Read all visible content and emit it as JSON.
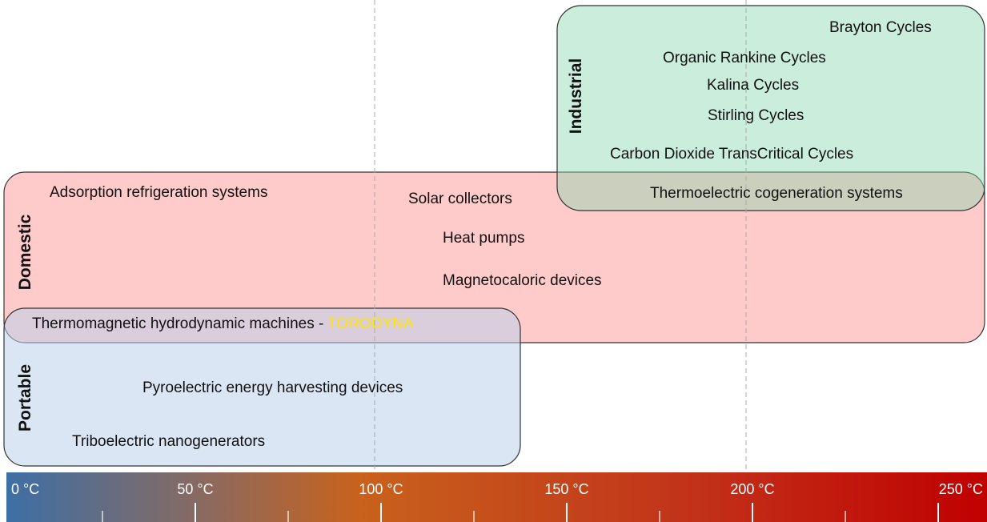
{
  "groups": {
    "industrial": {
      "label": "Industrial",
      "items": [
        "Brayton Cycles",
        "Organic Rankine Cycles",
        "Kalina Cycles",
        "Stirling Cycles",
        "Carbon Dioxide TransCritical Cycles",
        "Thermoelectric cogeneration systems"
      ]
    },
    "domestic": {
      "label": "Domestic",
      "items": [
        "Adsorption refrigeration systems",
        "Solar collectors",
        "Heat pumps",
        "Magnetocaloric devices"
      ]
    },
    "portable": {
      "label": "Portable",
      "items": [
        "Pyroelectric energy harvesting devices",
        "Triboelectric nanogenerators"
      ]
    }
  },
  "shared": {
    "text": "Thermomagnetic hydrodynamic machines - ",
    "highlight": "TORODYNA"
  },
  "scale": {
    "labels": [
      "0 °C",
      "50 °C",
      "100 °C",
      "150 °C",
      "200 °C",
      "250 °C"
    ]
  }
}
